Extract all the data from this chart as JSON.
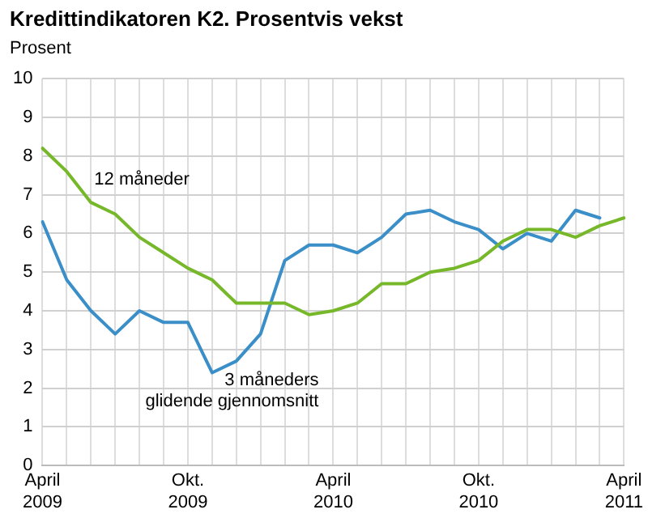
{
  "chart_data": {
    "type": "line",
    "title": "Kredittindikatoren K2. Prosentvis vekst",
    "ylabel": "Prosent",
    "categories": [
      "April 2009",
      null,
      null,
      null,
      null,
      null,
      "Okt. 2009",
      null,
      null,
      null,
      null,
      null,
      "April 2010",
      null,
      null,
      null,
      null,
      null,
      "Okt. 2010",
      null,
      null,
      null,
      null,
      null,
      "April 2011"
    ],
    "series": [
      {
        "name": "12 måneder",
        "color": "#77b82a",
        "values": [
          8.2,
          7.6,
          6.8,
          6.5,
          5.9,
          5.5,
          5.1,
          4.8,
          4.2,
          4.2,
          4.2,
          3.9,
          4.0,
          4.2,
          4.7,
          4.7,
          5.0,
          5.1,
          5.3,
          5.8,
          6.1,
          6.1,
          5.9,
          6.2,
          6.4
        ]
      },
      {
        "name": "3 måneders glidende gjennomsnitt",
        "color": "#3a8fc8",
        "values": [
          6.3,
          4.8,
          4.0,
          3.4,
          4.0,
          3.7,
          3.7,
          2.4,
          2.7,
          3.4,
          5.3,
          5.7,
          5.7,
          5.5,
          5.9,
          6.5,
          6.6,
          6.3,
          6.1,
          5.6,
          6.0,
          5.8,
          6.6,
          6.4,
          null
        ]
      }
    ],
    "ylim": [
      0,
      10
    ],
    "yticks": [
      0,
      1,
      2,
      3,
      4,
      5,
      6,
      7,
      8,
      9,
      10
    ],
    "grid": true,
    "legend": false,
    "marker": "none",
    "line_style": "solid"
  }
}
